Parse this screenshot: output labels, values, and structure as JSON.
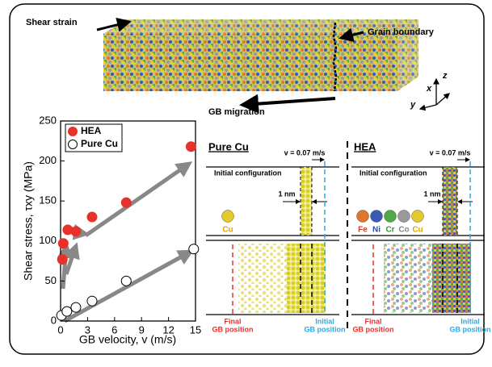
{
  "chart_data": {
    "type": "scatter",
    "xlabel": "GB velocity, v (m/s)",
    "ylabel": "Shear stress, τxy (MPa)",
    "xlim": [
      0,
      15
    ],
    "ylim": [
      0,
      250
    ],
    "xticks": [
      0,
      3,
      6,
      9,
      12,
      15
    ],
    "yticks": [
      0,
      50,
      100,
      150,
      200,
      250
    ],
    "legend": "upper left",
    "series": [
      {
        "name": "HEA",
        "color": "#e8312a",
        "filled": true,
        "x": [
          0.2,
          0.3,
          0.8,
          1.7,
          3.5,
          7.3,
          14.5
        ],
        "values": [
          77,
          97,
          114,
          112,
          130,
          148,
          218
        ]
      },
      {
        "name": "Pure Cu",
        "color": "#000000",
        "filled": false,
        "x": [
          0.1,
          0.7,
          1.7,
          3.5,
          7.3,
          14.8
        ],
        "values": [
          7,
          12,
          17,
          25,
          50,
          90
        ]
      }
    ]
  },
  "figure": {
    "shear_strain": "Shear strain",
    "grain_boundary": "Grain boundary",
    "gb_migration": "GB migration",
    "axis_x": "x",
    "axis_y": "y",
    "axis_z": "z"
  },
  "panels": [
    {
      "title": "Pure Cu",
      "velocity": "v = 0.07 m/s",
      "initial": "Initial configuration",
      "scale": "1 nm",
      "elements": [
        "Cu"
      ],
      "final_gb": [
        "Final",
        "GB position"
      ],
      "initial_gb": [
        "Initial",
        "GB position"
      ]
    },
    {
      "title": "HEA",
      "velocity": "v = 0.07 m/s",
      "initial": "Initial configuration",
      "scale": "1 nm",
      "elements": [
        "Fe",
        "Ni",
        "Cr",
        "Co",
        "Cu"
      ],
      "final_gb": [
        "Final",
        "GB position"
      ],
      "initial_gb": [
        "Initial",
        "GB position"
      ]
    }
  ]
}
